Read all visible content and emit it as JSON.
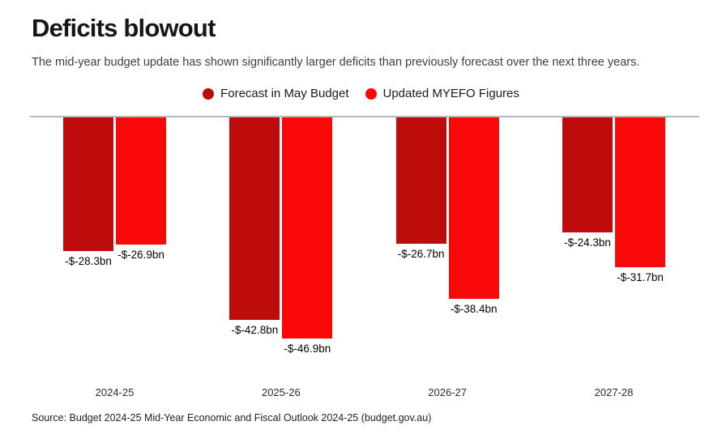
{
  "header": {
    "title": "Deficits blowout",
    "subtitle": "The mid-year budget update has shown significantly larger deficits than previously forecast over the next three years."
  },
  "chart_data": {
    "type": "bar",
    "orientation": "vertical-negative",
    "unit": "AUD billions",
    "title": "Deficits blowout",
    "subtitle": "The mid-year budget update has shown significantly larger deficits than previously forecast over the next three years.",
    "categories": [
      "2024-25",
      "2025-26",
      "2026-27",
      "2027-28"
    ],
    "series": [
      {
        "name": "Forecast in May Budget",
        "color": "#be0b0b",
        "values": [
          -28.3,
          -42.8,
          -26.7,
          -24.3
        ],
        "labels": [
          "-$-28.3bn",
          "-$-42.8bn",
          "-$-26.7bn",
          "-$-24.3bn"
        ]
      },
      {
        "name": "Updated MYEFO Figures",
        "color": "#f90808",
        "values": [
          -26.9,
          -46.9,
          -38.4,
          -31.7
        ],
        "labels": [
          "-$-26.9bn",
          "-$-46.9bn",
          "-$-38.4bn",
          "-$-31.7bn"
        ]
      }
    ],
    "baseline_value": 0,
    "ylim": [
      -50,
      0
    ],
    "grid": false,
    "legend_position": "top-center",
    "axis_line_color": "#b7b7b7"
  },
  "footer": {
    "source": "Source: Budget 2024-25 Mid-Year Economic and Fiscal Outlook 2024-25 (budget.gov.au)"
  }
}
